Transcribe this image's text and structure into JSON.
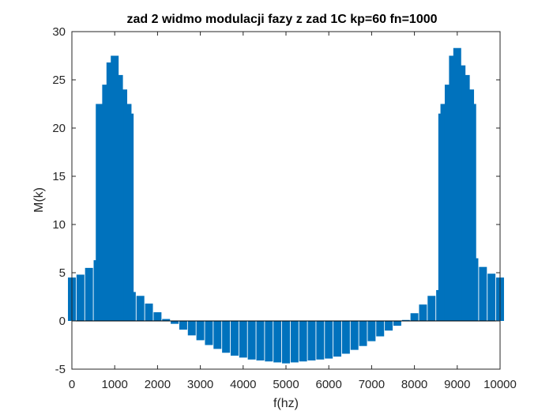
{
  "chart_data": {
    "type": "bar",
    "title": "zad 2 widmo modulacji fazy z zad 1C kp=60 fn=1000",
    "xlabel": "f(hz)",
    "ylabel": "M(k)",
    "xlim": [
      0,
      10000
    ],
    "ylim": [
      -5,
      30
    ],
    "xticks": [
      0,
      1000,
      2000,
      3000,
      4000,
      5000,
      6000,
      7000,
      8000,
      9000,
      10000
    ],
    "xtick_labels": [
      "0",
      "1000",
      "2000",
      "3000",
      "4000",
      "5000",
      "6000",
      "7000",
      "8000",
      "9000",
      "10000"
    ],
    "yticks": [
      -5,
      0,
      5,
      10,
      15,
      20,
      25,
      30
    ],
    "ytick_labels": [
      "-5",
      "0",
      "5",
      "10",
      "15",
      "20",
      "25",
      "30"
    ],
    "grid": false,
    "series": [
      {
        "color": "#0072BD",
        "x": [
          0,
          200,
          400,
          600,
          650,
          700,
          800,
          900,
          1000,
          1100,
          1200,
          1300,
          1350,
          1400,
          1600,
          1800,
          2000,
          2200,
          2400,
          2600,
          2800,
          3000,
          3200,
          3400,
          3600,
          3800,
          4000,
          4200,
          4400,
          4600,
          4800,
          5000,
          5200,
          5400,
          5600,
          5800,
          6000,
          6200,
          6400,
          6600,
          6800,
          7000,
          7200,
          7400,
          7600,
          7800,
          8000,
          8200,
          8400,
          8600,
          8650,
          8700,
          8800,
          8900,
          9000,
          9100,
          9200,
          9300,
          9350,
          9400,
          9600,
          9800,
          10000
        ],
        "values": [
          4.5,
          4.8,
          5.5,
          6.3,
          22.5,
          21.5,
          24.5,
          26.8,
          27.5,
          25.5,
          24.0,
          22.5,
          21.5,
          3.0,
          2.6,
          1.8,
          0.9,
          0.2,
          -0.3,
          -0.9,
          -1.5,
          -2.0,
          -2.5,
          -2.9,
          -3.3,
          -3.6,
          -3.8,
          -4.0,
          -4.1,
          -4.2,
          -4.3,
          -4.4,
          -4.3,
          -4.2,
          -4.1,
          -4.0,
          -3.9,
          -3.7,
          -3.4,
          -3.0,
          -2.6,
          -2.1,
          -1.6,
          -1.0,
          -0.5,
          0.1,
          0.8,
          1.7,
          2.6,
          3.2,
          21.5,
          22.5,
          24.5,
          27.5,
          28.3,
          26.5,
          25.5,
          24.0,
          22.5,
          6.5,
          5.6,
          4.9,
          4.5
        ]
      }
    ]
  }
}
